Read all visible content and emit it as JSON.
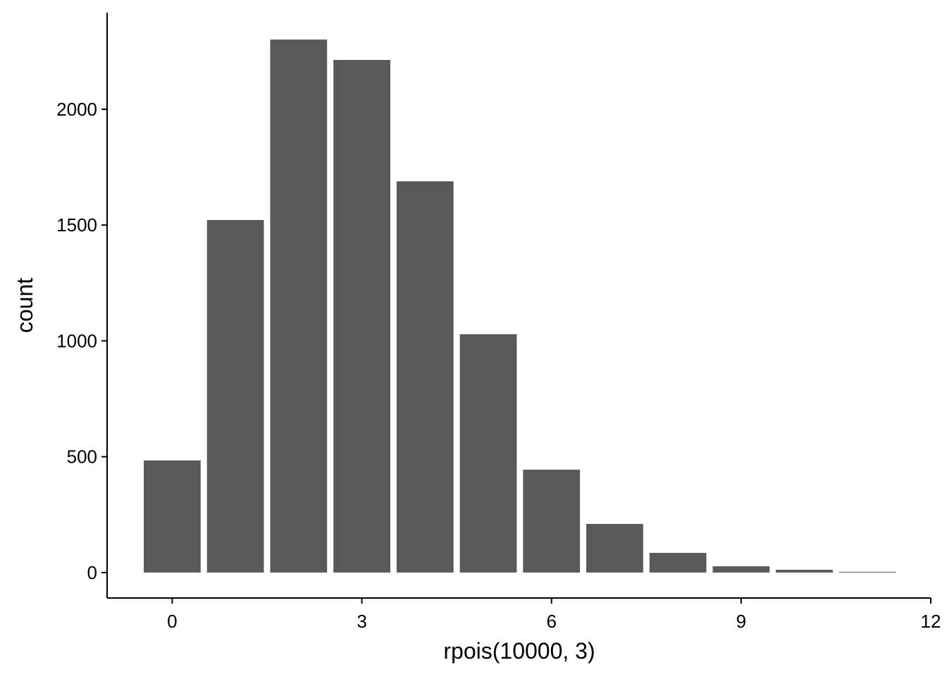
{
  "chart_data": {
    "type": "bar",
    "x_label": "rpois(10000, 3)",
    "y_label": "count",
    "x": [
      0,
      1,
      2,
      3,
      4,
      5,
      6,
      7,
      8,
      9,
      10,
      11
    ],
    "values": [
      484,
      1522,
      2301,
      2213,
      1689,
      1029,
      444,
      210,
      85,
      27,
      12,
      3
    ],
    "color": "#595959",
    "xlim": [
      -1.03,
      12.0
    ],
    "xticks": [
      0,
      3,
      6,
      9,
      12
    ],
    "ylim": [
      -110,
      2417
    ],
    "yticks": [
      0,
      500,
      1000,
      1500,
      2000
    ]
  }
}
